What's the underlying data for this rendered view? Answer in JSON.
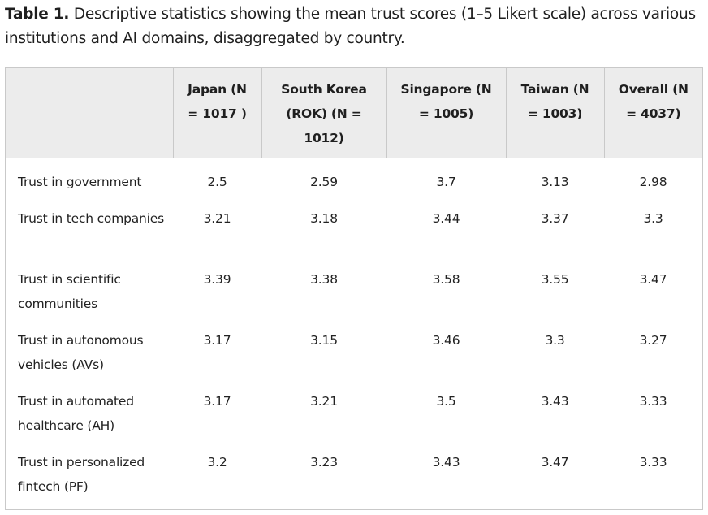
{
  "caption": {
    "label": "Table 1.",
    "text": " Descriptive statistics showing the mean trust scores (1–5 Likert scale) across various institutions and AI domains, disaggregated by country."
  },
  "table": {
    "corner": "",
    "headers": [
      "Japan (N = 1017 )",
      "South Korea (ROK) (N = 1012)",
      "Singapore (N = 1005)",
      "Taiwan (N = 1003)",
      "Overall (N = 4037)"
    ],
    "rows": [
      {
        "label": "Trust in government",
        "values": [
          "2.5",
          "2.59",
          "3.7",
          "3.13",
          "2.98"
        ]
      },
      {
        "label": "Trust in tech companies",
        "values": [
          "3.21",
          "3.18",
          "3.44",
          "3.37",
          "3.3"
        ]
      },
      {
        "label": "Trust in scientific communities",
        "values": [
          "3.39",
          "3.38",
          "3.58",
          "3.55",
          "3.47"
        ]
      },
      {
        "label": "Trust in autonomous vehicles (AVs)",
        "values": [
          "3.17",
          "3.15",
          "3.46",
          "3.3",
          "3.27"
        ]
      },
      {
        "label": "Trust in automated healthcare (AH)",
        "values": [
          "3.17",
          "3.21",
          "3.5",
          "3.43",
          "3.33"
        ]
      },
      {
        "label": "Trust in personalized fintech (PF)",
        "values": [
          "3.2",
          "3.23",
          "3.43",
          "3.47",
          "3.33"
        ]
      }
    ]
  }
}
